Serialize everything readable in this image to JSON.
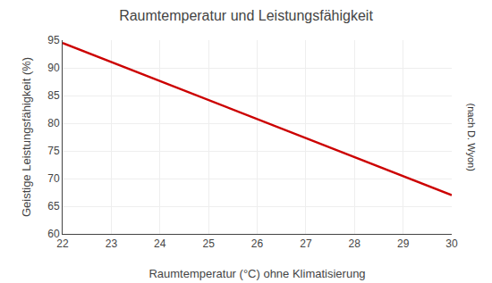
{
  "chart_data": {
    "type": "line",
    "title": "Raumtemperatur und Leistungsfähigkeit",
    "xlabel": "Raumtemperatur (°C) ohne Klimatisierung",
    "ylabel": "Geistige Leistungsfähigkeit (%)",
    "annotations": [
      "(nach D. Wyon)"
    ],
    "x": [
      22,
      30
    ],
    "values": [
      94.5,
      67.0
    ],
    "color": "#cc0000",
    "xlim": [
      22,
      30
    ],
    "ylim": [
      60,
      95
    ],
    "xticks": [
      22,
      23,
      24,
      25,
      26,
      27,
      28,
      29,
      30
    ],
    "yticks": [
      60,
      65,
      70,
      75,
      80,
      85,
      90,
      95
    ],
    "grid": true
  }
}
